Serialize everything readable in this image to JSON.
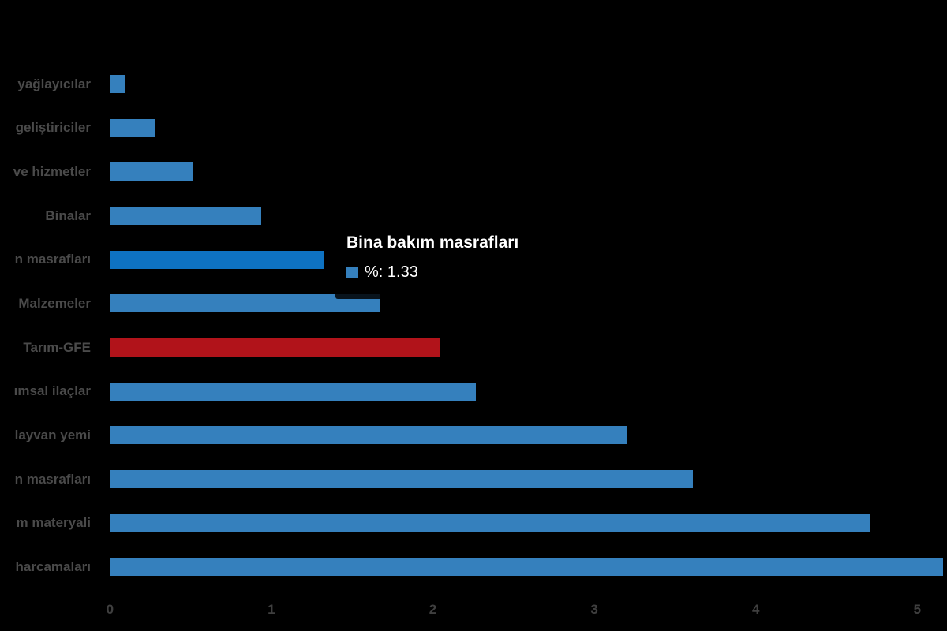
{
  "chart_data": {
    "type": "bar",
    "orientation": "horizontal",
    "title": "",
    "xlabel": "",
    "ylabel": "",
    "legend": "off",
    "grid": "off",
    "categories": [
      "yağlayıcılar",
      "geliştiriciler",
      "ve hizmetler",
      "Binalar",
      "n masrafları",
      "Malzemeler",
      "Tarım-GFE",
      "ımsal ilaçlar",
      "layvan yemi",
      "n masrafları",
      "m materyali",
      "harcamaları"
    ],
    "series": [
      {
        "name": "%",
        "values": [
          0.1,
          0.28,
          0.52,
          0.94,
          1.33,
          1.67,
          2.05,
          2.27,
          3.2,
          3.61,
          4.71,
          5.16
        ]
      }
    ],
    "x_ticks": [
      "0",
      "1",
      "2",
      "3",
      "4",
      "5"
    ],
    "xlim": [
      0,
      5.2
    ],
    "highlighted_index": 4,
    "accent_index": 6,
    "bar_colors": [
      "#3580BD",
      "#3580BD",
      "#3580BD",
      "#3580BD",
      "#0E72C2",
      "#3580BD",
      "#B1131A",
      "#3580BD",
      "#3580BD",
      "#3580BD",
      "#3580BD",
      "#3580BD"
    ]
  },
  "tooltip": {
    "title": "Bina bakım masrafları",
    "series_name": "%",
    "value": "1.33",
    "text": "%: 1.33",
    "swatch_color": "#3580BD"
  },
  "colors": {
    "background": "#000000",
    "bar_default": "#3580BD",
    "bar_active": "#0E72C2",
    "bar_accent": "#B1131A",
    "y_label": "#4A4A4A",
    "x_label": "#3F3F3F",
    "tooltip_text": "#FFFFFF"
  }
}
